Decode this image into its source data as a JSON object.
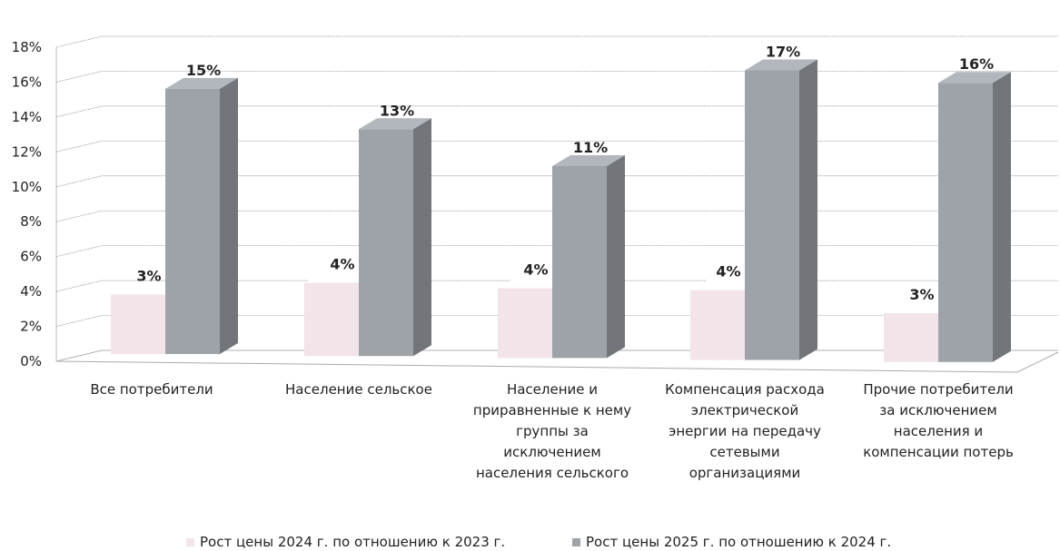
{
  "chart_data": {
    "type": "bar3d",
    "categories": [
      "Все потребители",
      "Население сельское",
      "Население и\nприравненные к нему\nгруппы за\nисключением\nнаселения сельского",
      "Компенсация расхода\nэлектрической\nэнергии на передачу\nсетевыми\nорганизациями",
      "Прочие потребители\nза исключением\nнаселения и\nкомпенсации потерь"
    ],
    "series": [
      {
        "name": "Рост цены 2024 г. по отношению к 2023 г.",
        "color": "#f2e4e8",
        "values": [
          3.4,
          4.2,
          4,
          4,
          2.8
        ],
        "value_labels": [
          "3%",
          "4%",
          "4%",
          "4%",
          "3%"
        ]
      },
      {
        "name": "Рост цены 2025 г. по отношению к 2024 г.",
        "color": "#9ea3a9",
        "values": [
          15.2,
          13,
          11,
          16.6,
          16
        ],
        "value_labels": [
          "15%",
          "13%",
          "11%",
          "17%",
          "16%"
        ]
      }
    ],
    "ylim": [
      0,
      18
    ],
    "yticks": [
      {
        "value": 0,
        "label": "0%"
      },
      {
        "value": 2,
        "label": "2%"
      },
      {
        "value": 4,
        "label": "4%"
      },
      {
        "value": 6,
        "label": "6%"
      },
      {
        "value": 8,
        "label": "8%"
      },
      {
        "value": 10,
        "label": "10%"
      },
      {
        "value": 12,
        "label": "12%"
      },
      {
        "value": 14,
        "label": "14%"
      },
      {
        "value": 16,
        "label": "16%"
      },
      {
        "value": 18,
        "label": "18%"
      }
    ],
    "grid": true
  }
}
